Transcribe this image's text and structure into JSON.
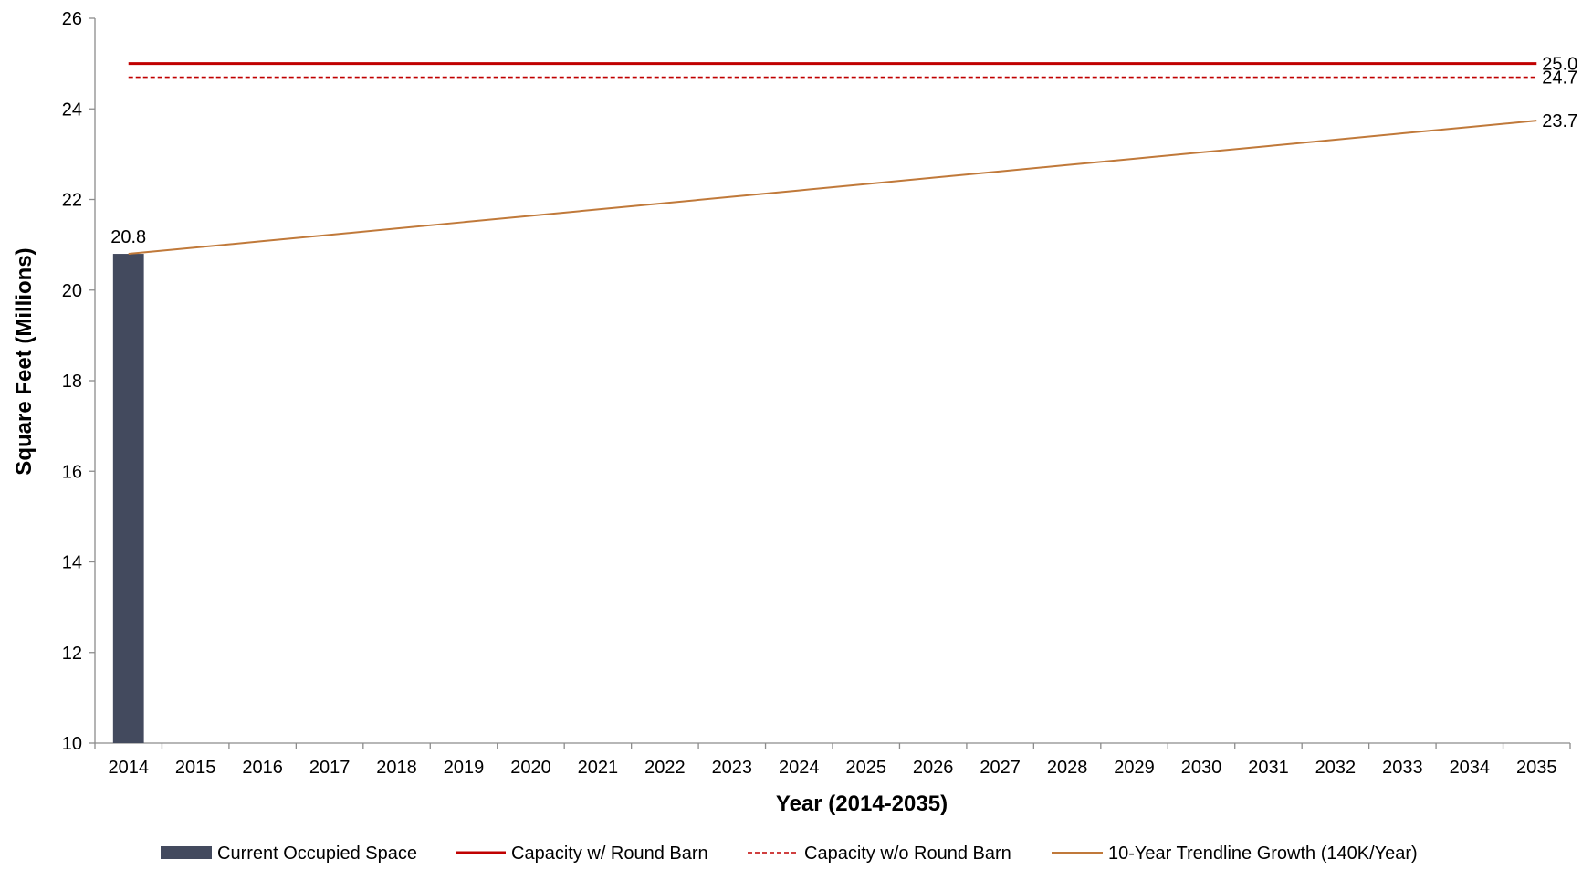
{
  "chart_data": {
    "type": "bar",
    "title": "",
    "xlabel": "Year (2014-2035)",
    "ylabel": "Square Feet (Millions)",
    "ylim": [
      10,
      26
    ],
    "yticks": [
      10,
      12,
      14,
      16,
      18,
      20,
      22,
      24,
      26
    ],
    "categories": [
      "2014",
      "2015",
      "2016",
      "2017",
      "2018",
      "2019",
      "2020",
      "2021",
      "2022",
      "2023",
      "2024",
      "2025",
      "2026",
      "2027",
      "2028",
      "2029",
      "2030",
      "2031",
      "2032",
      "2033",
      "2034",
      "2035"
    ],
    "grid": false,
    "legend_position": "bottom",
    "series": [
      {
        "name": "Current Occupied Space",
        "kind": "bar",
        "color": "#434a5e",
        "values": [
          20.8,
          null,
          null,
          null,
          null,
          null,
          null,
          null,
          null,
          null,
          null,
          null,
          null,
          null,
          null,
          null,
          null,
          null,
          null,
          null,
          null,
          null
        ],
        "data_labels": [
          {
            "category": "2014",
            "text": "20.8"
          }
        ]
      },
      {
        "name": "Capacity w/ Round Barn",
        "kind": "line",
        "style": "solid",
        "color": "#c00000",
        "values": [
          25.0,
          25.0,
          25.0,
          25.0,
          25.0,
          25.0,
          25.0,
          25.0,
          25.0,
          25.0,
          25.0,
          25.0,
          25.0,
          25.0,
          25.0,
          25.0,
          25.0,
          25.0,
          25.0,
          25.0,
          25.0,
          25.0
        ],
        "end_label": "25.0"
      },
      {
        "name": "Capacity w/o Round Barn",
        "kind": "line",
        "style": "dashed",
        "color": "#c00000",
        "values": [
          24.7,
          24.7,
          24.7,
          24.7,
          24.7,
          24.7,
          24.7,
          24.7,
          24.7,
          24.7,
          24.7,
          24.7,
          24.7,
          24.7,
          24.7,
          24.7,
          24.7,
          24.7,
          24.7,
          24.7,
          24.7,
          24.7
        ],
        "end_label": "24.7"
      },
      {
        "name": "10-Year Trendline Growth (140K/Year)",
        "kind": "line",
        "style": "solid",
        "color": "#c0793a",
        "values": [
          20.8,
          20.94,
          21.08,
          21.22,
          21.36,
          21.5,
          21.64,
          21.78,
          21.92,
          22.06,
          22.2,
          22.34,
          22.48,
          22.62,
          22.76,
          22.9,
          23.04,
          23.18,
          23.32,
          23.46,
          23.6,
          23.74
        ],
        "end_label": "23.7"
      }
    ]
  }
}
